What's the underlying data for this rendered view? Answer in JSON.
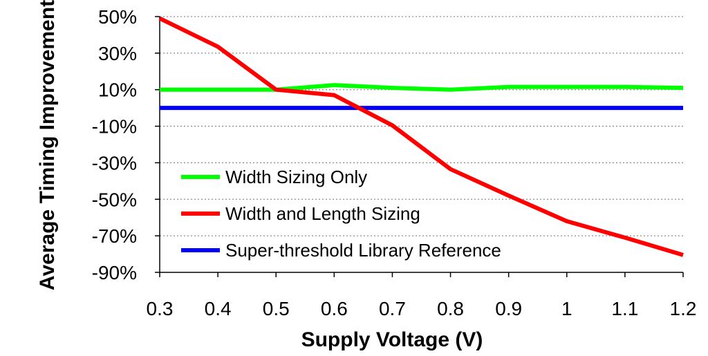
{
  "chart_data": {
    "type": "line",
    "title": "",
    "xlabel": "Supply Voltage (V)",
    "ylabel": "Average Timing Improvement",
    "x": [
      0.3,
      0.4,
      0.5,
      0.6,
      0.7,
      0.8,
      0.9,
      1,
      1.1,
      1.2
    ],
    "x_tick_labels": [
      "0.3",
      "0.4",
      "0.5",
      "0.6",
      "0.7",
      "0.8",
      "0.9",
      "1",
      "1.1",
      "1.2"
    ],
    "ylim": [
      -90,
      50
    ],
    "y_ticks": [
      50,
      30,
      10,
      -10,
      -30,
      -50,
      -70,
      -90
    ],
    "y_tick_labels": [
      "50%",
      "30%",
      "10%",
      "-10%",
      "-30%",
      "-50%",
      "-70%",
      "-90%"
    ],
    "grid": "horizontal dotted",
    "legend_position": "bottom-left",
    "series": [
      {
        "name": "Width Sizing Only",
        "color": "#00ff00",
        "values": [
          10,
          10,
          10,
          12.5,
          11,
          10,
          11.5,
          11.5,
          11.5,
          11
        ]
      },
      {
        "name": "Width and Length Sizing",
        "color": "#ff0000",
        "values": [
          49,
          33.5,
          10,
          7,
          -9.5,
          -33.5,
          -48,
          -62,
          -71,
          -80.5
        ]
      },
      {
        "name": "Super-threshold Library Reference",
        "color": "#0000ff",
        "values": [
          0,
          0,
          0,
          0,
          0,
          0,
          0,
          0,
          0,
          0
        ]
      }
    ]
  }
}
